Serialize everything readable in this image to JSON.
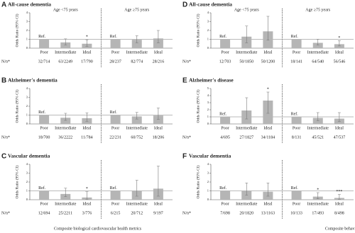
{
  "chart_data": [
    {
      "type": "bar",
      "panel": "A",
      "title": "All-cause dementia",
      "ylabel": "Odds Ratio (95% CI)",
      "groups": [
        "Age <75 years",
        "Age ≥75 years"
      ],
      "categories": [
        "Poor",
        "Intermediate",
        "Ideal",
        "Poor",
        "Intermediate",
        "Ideal"
      ],
      "values": [
        1,
        0.65,
        0.5,
        1,
        0.95,
        1.1
      ],
      "ci_low": [
        null,
        0.35,
        0.2,
        null,
        0.6,
        0.6
      ],
      "ci_high": [
        null,
        1.05,
        0.95,
        null,
        1.4,
        2.0
      ],
      "annotations": [
        "Ref.",
        null,
        "*",
        "Ref.",
        null,
        null
      ],
      "n_label": "N/n*",
      "n": [
        "32/714",
        "63/2249",
        "17/790",
        "28/237",
        "82/774",
        "28/216"
      ],
      "ylim": [
        0,
        4
      ],
      "yticks": [
        0,
        1,
        2,
        3,
        4
      ],
      "ref_line": 1,
      "color": "#b5b5b5"
    },
    {
      "type": "bar",
      "panel": "B",
      "title": "Alzheimer's dementia",
      "ylabel": "Odds Ratio (95% CI)",
      "categories": [
        "Poor",
        "Intermediate",
        "Ideal",
        "Poor",
        "Intermediate",
        "Ideal"
      ],
      "values": [
        1,
        0.7,
        0.65,
        1,
        0.85,
        0.95
      ],
      "ci_low": [
        null,
        0.4,
        0.3,
        null,
        0.55,
        0.5
      ],
      "ci_high": [
        null,
        1.2,
        1.25,
        null,
        1.3,
        1.8
      ],
      "annotations": [
        "Ref.",
        null,
        null,
        "Ref.",
        null,
        null
      ],
      "n_label": "N/n*",
      "n": [
        "18/700",
        "36/2222",
        "11/784",
        "22/231",
        "60/752",
        "18/206"
      ],
      "ylim": [
        0,
        4
      ],
      "yticks": [
        0,
        1,
        2,
        3,
        4
      ],
      "ref_line": 1,
      "color": "#b5b5b5"
    },
    {
      "type": "bar",
      "panel": "C",
      "title": "Vascular dementia",
      "ylabel": "Odds Ratio (95% CI)",
      "xlabel": "Composite biological cardiovascular health metrics",
      "categories": [
        "Poor",
        "Intermediate",
        "Ideal",
        "Poor",
        "Intermediate",
        "Ideal"
      ],
      "values": [
        1,
        0.65,
        0.25,
        1,
        1.0,
        1.25
      ],
      "ci_low": [
        null,
        0.35,
        0.05,
        null,
        0.4,
        0.4
      ],
      "ci_high": [
        null,
        1.3,
        0.9,
        null,
        2.2,
        3.8
      ],
      "annotations": [
        "Ref.",
        null,
        "*",
        "Ref.",
        null,
        null
      ],
      "n_label": "N/n*",
      "n": [
        "12/694",
        "25/2211",
        "3/776",
        "6/215",
        "20/712",
        "9/197"
      ],
      "ylim": [
        0,
        4
      ],
      "yticks": [
        0,
        1,
        2,
        3,
        4
      ],
      "ref_line": 1,
      "color": "#b5b5b5"
    },
    {
      "type": "bar",
      "panel": "D",
      "title": "All-cause dementia",
      "ylabel": "Odds Ratio (95% CI)",
      "groups": [
        "Age <75 years",
        "Age ≥75 years"
      ],
      "categories": [
        "Poor",
        "Intermediate",
        "Ideal",
        "Poor",
        "Intermediate",
        "Ideal"
      ],
      "values": [
        1,
        1.3,
        1.9,
        1,
        0.6,
        0.45
      ],
      "ci_low": [
        null,
        0.6,
        0.9,
        null,
        0.35,
        0.25
      ],
      "ci_high": [
        null,
        2.5,
        3.6,
        null,
        1.0,
        0.85
      ],
      "annotations": [
        "Ref.",
        null,
        null,
        "Ref.",
        null,
        "*"
      ],
      "n_label": "N/n*",
      "n": [
        "12/703",
        "50/1850",
        "50/1200",
        "18/141",
        "64/540",
        "56/546"
      ],
      "ylim": [
        0,
        4
      ],
      "yticks": [
        0,
        1,
        2,
        3,
        4
      ],
      "ref_line": 1,
      "color": "#b5b5b5"
    },
    {
      "type": "bar",
      "panel": "E",
      "title": "Alzheimer's disease",
      "ylabel": "Odds Ratio (95% CI)",
      "categories": [
        "Poor",
        "Intermediate",
        "Ideal",
        "Poor",
        "Intermediate",
        "Ideal"
      ],
      "values": [
        1,
        1.9,
        3.3,
        1,
        0.85,
        0.75
      ],
      "ci_low": [
        null,
        0.7,
        1.5,
        null,
        0.45,
        0.35
      ],
      "ci_high": [
        null,
        3.7,
        4.5,
        null,
        1.6,
        1.6
      ],
      "annotations": [
        "Ref.",
        null,
        "*",
        "Ref.",
        null,
        null
      ],
      "n_label": "N/n*",
      "n": [
        "4/695",
        "27/1827",
        "34/1184",
        "8/131",
        "45/521",
        "47/537"
      ],
      "ylim": [
        0,
        5
      ],
      "yticks": [
        0,
        1,
        2,
        3,
        4,
        5
      ],
      "ref_line": 1,
      "color": "#b5b5b5"
    },
    {
      "type": "bar",
      "panel": "F",
      "title": "Vascular dementia",
      "ylabel": "Odds Ratio (95% CI)",
      "xlabel": "Composite behavioral cardiovascular health metrics",
      "categories": [
        "Poor",
        "Intermediate",
        "Ideal",
        "Poor",
        "Intermediate",
        "Ideal"
      ],
      "values": [
        1,
        1.0,
        0.9,
        1,
        0.35,
        0.2
      ],
      "ci_low": [
        null,
        0.5,
        0.4,
        null,
        0.1,
        0.05
      ],
      "ci_high": [
        null,
        1.9,
        1.9,
        null,
        0.8,
        0.6
      ],
      "annotations": [
        "Ref.",
        null,
        null,
        "Ref.",
        "*",
        "***"
      ],
      "n_label": "N/n*",
      "n": [
        "7/698",
        "20/1820",
        "13/1163",
        "10/133",
        "17/493",
        "8/498"
      ],
      "ylim": [
        0,
        4
      ],
      "yticks": [
        0,
        1,
        2,
        3,
        4
      ],
      "ref_line": 1,
      "color": "#b5b5b5"
    }
  ]
}
